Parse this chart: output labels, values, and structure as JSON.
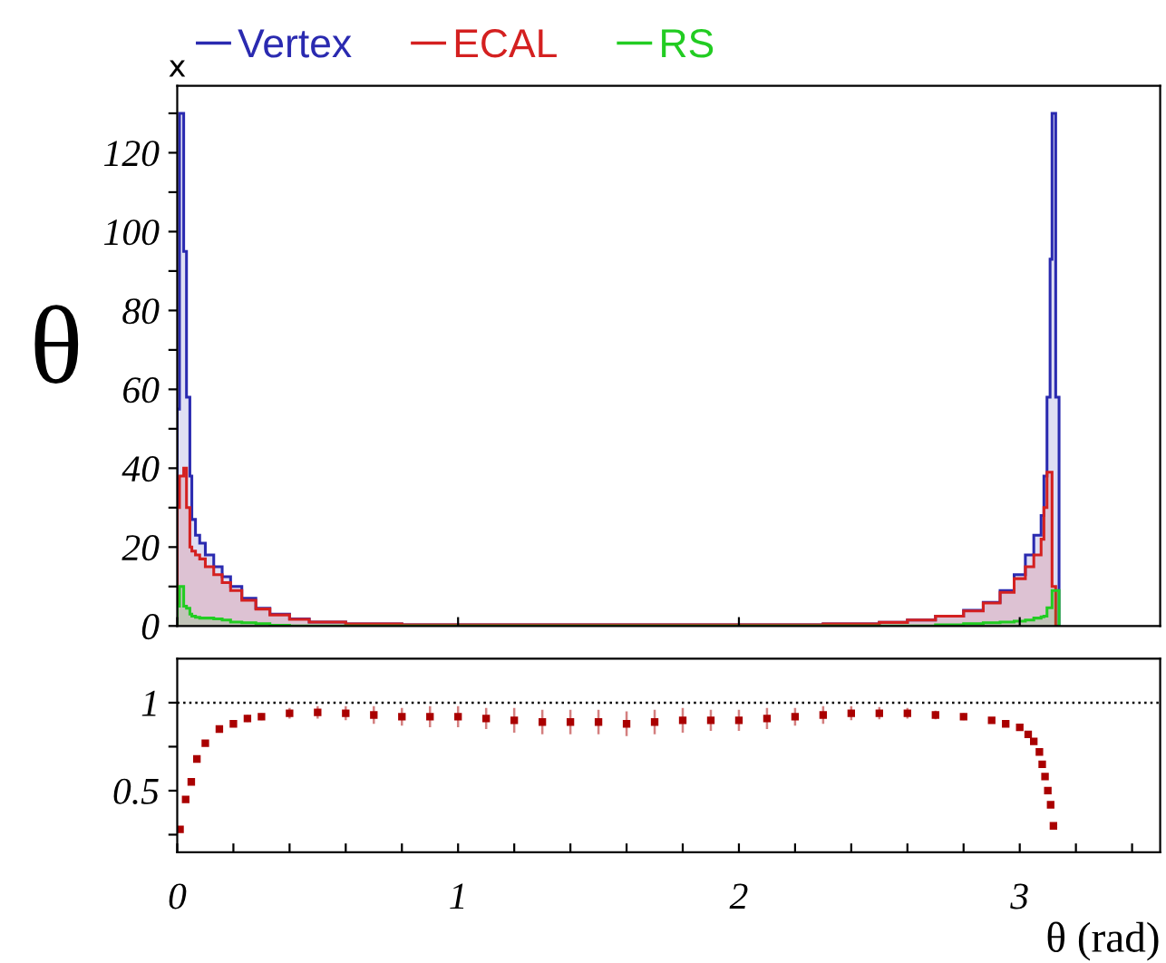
{
  "chart_data": [
    {
      "type": "histogram",
      "ylabel": "θ",
      "legend": "top",
      "tick_labels": "y",
      "annotations": [
        "x"
      ],
      "bins": [
        0,
        0.008,
        0.023,
        0.033,
        0.045,
        0.052,
        0.065,
        0.08,
        0.1,
        0.13,
        0.16,
        0.19,
        0.23,
        0.28,
        0.33,
        0.4,
        0.47,
        0.6,
        0.8,
        1.0,
        1.5,
        2.0,
        2.3,
        2.5,
        2.6,
        2.7,
        2.8,
        2.87,
        2.93,
        2.98,
        3.02,
        3.05,
        3.076,
        3.086,
        3.097,
        3.108,
        3.115,
        3.128,
        3.14
      ],
      "series": [
        {
          "name": "Vertex",
          "color": "#2a2ab0",
          "values": [
            55,
            130,
            95,
            58,
            38,
            27,
            23,
            21,
            18,
            15,
            12.5,
            10,
            7,
            4.5,
            3,
            1.8,
            1,
            0.5,
            0.3,
            0.3,
            0.3,
            0.3,
            0.5,
            0.9,
            1.5,
            2.5,
            4,
            6,
            9,
            13,
            18,
            23,
            28,
            38,
            58,
            93,
            130,
            58
          ]
        },
        {
          "name": "ECAL",
          "color": "#d42020",
          "values": [
            30,
            38,
            40,
            30,
            20,
            19,
            18,
            17,
            15,
            13,
            11,
            9,
            6.5,
            4.3,
            2.8,
            1.7,
            1,
            0.5,
            0.3,
            0.3,
            0.3,
            0.3,
            0.5,
            0.9,
            1.5,
            2.5,
            3.8,
            5.8,
            8.5,
            12,
            15,
            18,
            22,
            30,
            39,
            39,
            10,
            0
          ]
        },
        {
          "name": "RS",
          "color": "#22cc22",
          "values": [
            5,
            10,
            5,
            4.5,
            3,
            2.5,
            2.2,
            2,
            2,
            1.8,
            1.5,
            1,
            0.8,
            0.6,
            0.2,
            0,
            0,
            0,
            0,
            0,
            0,
            0,
            0,
            0,
            0,
            0.3,
            0.6,
            0.8,
            1,
            1.2,
            1.5,
            2,
            2.3,
            2.5,
            4.6,
            4.6,
            9,
            9
          ]
        }
      ],
      "xlim": [
        0,
        3.5
      ],
      "ylim": [
        0,
        137
      ],
      "xticks": [
        {
          "value": 0,
          "label": null
        },
        {
          "value": 1,
          "label": null
        },
        {
          "value": 2,
          "label": null
        },
        {
          "value": 3,
          "label": null
        }
      ],
      "yticks": [
        0,
        {
          "value": 10,
          "label": null
        },
        20,
        {
          "value": 30,
          "label": null
        },
        40,
        {
          "value": 50,
          "label": null
        },
        60,
        {
          "value": 70,
          "label": null
        },
        80,
        {
          "value": 90,
          "label": null
        },
        100,
        {
          "value": 110,
          "label": null
        },
        120,
        {
          "value": 130,
          "label": null
        }
      ]
    },
    {
      "type": "scatter",
      "xlabel": "θ (rad)",
      "marker": "square",
      "color": "#aa0000",
      "x": [
        0.01,
        0.03,
        0.05,
        0.07,
        0.1,
        0.15,
        0.2,
        0.25,
        0.3,
        0.4,
        0.5,
        0.6,
        0.7,
        0.8,
        0.9,
        1.0,
        1.1,
        1.2,
        1.3,
        1.4,
        1.5,
        1.6,
        1.7,
        1.8,
        1.9,
        2.0,
        2.1,
        2.2,
        2.3,
        2.4,
        2.5,
        2.6,
        2.7,
        2.8,
        2.9,
        2.95,
        3.0,
        3.03,
        3.05,
        3.07,
        3.08,
        3.09,
        3.1,
        3.11,
        3.12
      ],
      "values": [
        0.28,
        0.45,
        0.55,
        0.68,
        0.77,
        0.85,
        0.88,
        0.91,
        0.92,
        0.94,
        0.945,
        0.94,
        0.93,
        0.92,
        0.92,
        0.92,
        0.91,
        0.9,
        0.89,
        0.89,
        0.89,
        0.88,
        0.89,
        0.9,
        0.9,
        0.9,
        0.91,
        0.92,
        0.93,
        0.94,
        0.94,
        0.94,
        0.93,
        0.92,
        0.9,
        0.88,
        0.86,
        0.82,
        0.78,
        0.72,
        0.65,
        0.58,
        0.5,
        0.42,
        0.3
      ],
      "errors": [
        0.01,
        0.01,
        0.01,
        0.01,
        0.01,
        0.01,
        0.015,
        0.02,
        0.02,
        0.03,
        0.035,
        0.04,
        0.05,
        0.05,
        0.06,
        0.06,
        0.06,
        0.07,
        0.07,
        0.07,
        0.07,
        0.07,
        0.07,
        0.07,
        0.06,
        0.06,
        0.06,
        0.05,
        0.05,
        0.04,
        0.035,
        0.03,
        0.025,
        0.02,
        0.015,
        0.01,
        0.01,
        0.01,
        0.01,
        0.01,
        0.01,
        0.01,
        0.01,
        0.01,
        0.01
      ],
      "xlim": [
        0,
        3.5
      ],
      "ylim": [
        0.15,
        1.25
      ],
      "xticks": [
        0,
        {
          "value": 0.2,
          "label": null
        },
        {
          "value": 0.4,
          "label": null
        },
        {
          "value": 0.6,
          "label": null
        },
        {
          "value": 0.8,
          "label": null
        },
        1,
        {
          "value": 1.2,
          "label": null
        },
        {
          "value": 1.4,
          "label": null
        },
        {
          "value": 1.6,
          "label": null
        },
        {
          "value": 1.8,
          "label": null
        },
        2,
        {
          "value": 2.2,
          "label": null
        },
        {
          "value": 2.4,
          "label": null
        },
        {
          "value": 2.6,
          "label": null
        },
        {
          "value": 2.8,
          "label": null
        },
        3,
        {
          "value": 3.2,
          "label": null
        },
        {
          "value": 3.4,
          "label": null
        }
      ],
      "yticks": [
        {
          "value": 0.25,
          "label": null
        },
        0.5,
        {
          "value": 0.75,
          "label": null
        },
        1
      ],
      "ref_lines": [
        {
          "axis": "y",
          "value": 1,
          "line_style": "dotted",
          "color": "#000000"
        }
      ]
    }
  ]
}
